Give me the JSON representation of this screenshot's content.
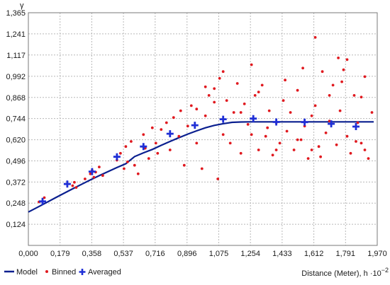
{
  "chart_data": {
    "type": "scatter",
    "ylabel": "γ",
    "xlabel": "Distance (Meter), h ·10",
    "xlabel_exponent": "−2",
    "xlim": [
      0,
      1.97
    ],
    "ylim": [
      0,
      1.365
    ],
    "x_ticks": [
      "0,000",
      "0,179",
      "0,358",
      "0,537",
      "0,716",
      "0,896",
      "1,075",
      "1,254",
      "1,433",
      "1,612",
      "1,791",
      "1,970"
    ],
    "y_ticks": [
      "0,124",
      "0,248",
      "0,372",
      "0,496",
      "0,620",
      "0,744",
      "0,868",
      "0,992",
      "1,117",
      "1,241",
      "1,365"
    ],
    "grid": true,
    "legend_position": "bottom-left",
    "colors": {
      "model": "#0a1f8f",
      "binned": "#e0191f",
      "averaged": "#1f2fd6",
      "grid": "#b8b8b8"
    },
    "series": [
      {
        "name": "Model",
        "kind": "line",
        "x": [
          0,
          0.05,
          0.1,
          0.15,
          0.2,
          0.25,
          0.3,
          0.35,
          0.4,
          0.45,
          0.5,
          0.55,
          0.6,
          0.65,
          0.7,
          0.75,
          0.8,
          0.85,
          0.9,
          0.95,
          1.0,
          1.05,
          1.1,
          1.15,
          1.2,
          1.25,
          1.3,
          1.4,
          1.6,
          1.8,
          1.95
        ],
        "y": [
          0.196,
          0.223,
          0.25,
          0.278,
          0.305,
          0.332,
          0.358,
          0.384,
          0.409,
          0.433,
          0.457,
          0.479,
          0.521,
          0.543,
          0.563,
          0.587,
          0.61,
          0.632,
          0.653,
          0.672,
          0.69,
          0.704,
          0.714,
          0.722,
          0.724,
          0.725,
          0.725,
          0.725,
          0.725,
          0.725,
          0.725
        ]
      },
      {
        "name": "Binned",
        "kind": "points",
        "x": [
          0.06,
          0.09,
          0.25,
          0.26,
          0.27,
          0.32,
          0.35,
          0.36,
          0.37,
          0.38,
          0.4,
          0.42,
          0.5,
          0.52,
          0.54,
          0.55,
          0.56,
          0.58,
          0.6,
          0.62,
          0.65,
          0.66,
          0.68,
          0.7,
          0.72,
          0.73,
          0.75,
          0.78,
          0.8,
          0.82,
          0.85,
          0.86,
          0.88,
          0.9,
          0.92,
          0.95,
          0.98,
          1.0,
          1.02,
          1.05,
          1.07,
          1.08,
          1.1,
          1.12,
          1.14,
          1.16,
          1.18,
          1.2,
          1.22,
          1.24,
          1.26,
          1.28,
          1.3,
          1.32,
          1.34,
          1.36,
          1.38,
          1.4,
          1.42,
          1.44,
          1.46,
          1.48,
          1.5,
          1.52,
          1.54,
          1.56,
          1.58,
          1.6,
          1.62,
          1.64,
          1.66,
          1.68,
          1.7,
          1.72,
          1.74,
          1.76,
          1.78,
          1.8,
          1.82,
          1.84,
          1.86,
          1.88,
          1.9,
          1.92,
          1.94,
          1.1,
          1.26,
          1.3,
          1.45,
          1.52,
          1.6,
          1.62,
          1.75,
          1.77,
          1.85,
          1.88,
          0.95,
          1.0,
          1.05,
          1.2,
          1.35,
          1.4,
          1.55,
          1.65,
          1.7,
          1.8,
          1.9
        ],
        "y": [
          0.255,
          0.28,
          0.35,
          0.37,
          0.34,
          0.39,
          0.42,
          0.44,
          0.4,
          0.43,
          0.46,
          0.41,
          0.5,
          0.54,
          0.45,
          0.58,
          0.49,
          0.61,
          0.47,
          0.42,
          0.65,
          0.57,
          0.51,
          0.69,
          0.6,
          0.54,
          0.68,
          0.72,
          0.56,
          0.75,
          0.64,
          0.79,
          0.47,
          0.7,
          0.82,
          0.6,
          0.45,
          0.76,
          0.88,
          0.92,
          0.39,
          0.98,
          0.65,
          0.85,
          0.6,
          0.78,
          0.95,
          0.54,
          0.83,
          0.71,
          0.65,
          0.88,
          0.56,
          0.94,
          0.64,
          0.79,
          0.53,
          0.72,
          0.6,
          0.85,
          0.67,
          0.78,
          0.56,
          0.91,
          0.62,
          0.7,
          0.51,
          0.76,
          0.82,
          0.58,
          1.02,
          0.66,
          0.73,
          0.94,
          0.59,
          0.79,
          1.03,
          0.64,
          0.54,
          0.88,
          0.72,
          0.6,
          0.99,
          0.51,
          0.78,
          1.02,
          1.06,
          0.9,
          0.97,
          0.62,
          0.56,
          1.22,
          1.1,
          0.96,
          0.61,
          0.87,
          0.8,
          0.93,
          0.84,
          0.78,
          0.69,
          0.56,
          1.04,
          0.52,
          0.88,
          1.09,
          0.56
        ]
      },
      {
        "name": "Averaged",
        "kind": "crosses",
        "x": [
          0.08,
          0.22,
          0.36,
          0.5,
          0.65,
          0.8,
          0.94,
          1.1,
          1.27,
          1.4,
          1.56,
          1.71,
          1.85
        ],
        "y": [
          0.258,
          0.36,
          0.433,
          0.52,
          0.58,
          0.655,
          0.705,
          0.74,
          0.744,
          0.724,
          0.723,
          0.713,
          0.697
        ]
      }
    ]
  }
}
